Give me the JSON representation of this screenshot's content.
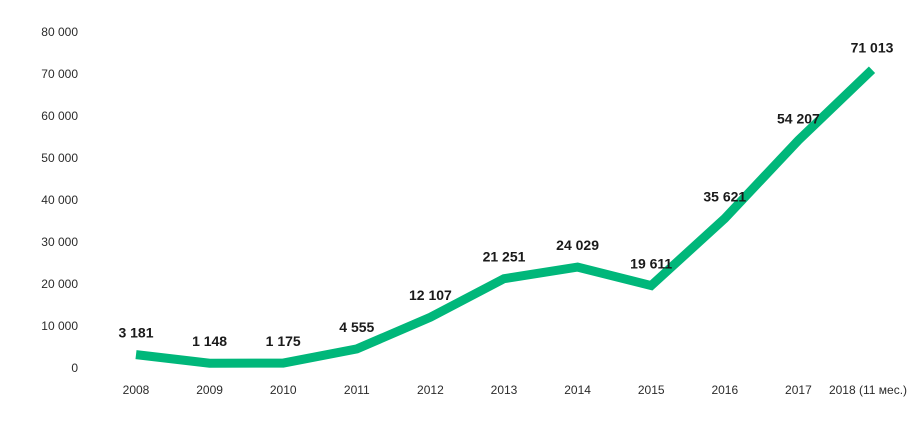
{
  "chart_data": {
    "type": "line",
    "title": "",
    "xlabel": "",
    "ylabel": "",
    "categories": [
      "2008",
      "2009",
      "2010",
      "2011",
      "2012",
      "2013",
      "2014",
      "2015",
      "2016",
      "2017",
      "2018 (11 мес.)"
    ],
    "series": [
      {
        "values": [
          3181,
          1148,
          1175,
          4555,
          12107,
          21251,
          24029,
          19611,
          35621,
          54207,
          71013
        ],
        "labels": [
          "3 181",
          "1 148",
          "1 175",
          "4 555",
          "12 107",
          "21 251",
          "24 029",
          "19 611",
          "35 621",
          "54 207",
          "71 013"
        ],
        "color": "#00b77a"
      }
    ],
    "ylim": [
      0,
      80000
    ],
    "yticks": [
      0,
      10000,
      20000,
      30000,
      40000,
      50000,
      60000,
      70000,
      80000
    ],
    "ytick_labels": [
      "0",
      "10 000",
      "20 000",
      "30 000",
      "40 000",
      "50 000",
      "60 000",
      "70 000",
      "80 000"
    ],
    "grid": false,
    "legend": "none"
  }
}
